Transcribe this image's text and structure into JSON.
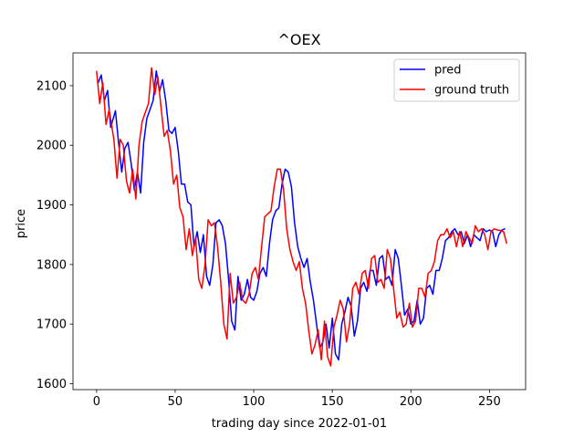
{
  "chart_data": {
    "type": "line",
    "title": "^OEX",
    "xlabel": "trading day since 2022-01-01",
    "ylabel": "price",
    "xlim": [
      -15,
      273
    ],
    "ylim": [
      1590,
      2155
    ],
    "x_ticks": [
      0,
      50,
      100,
      150,
      200,
      250
    ],
    "y_ticks": [
      1600,
      1700,
      1800,
      1900,
      2000,
      2100
    ],
    "grid": false,
    "legend_position": "top-right",
    "series": [
      {
        "name": "pred",
        "color": "#0000ff",
        "x": [
          1,
          3,
          5,
          7,
          9,
          12,
          14,
          16,
          18,
          20,
          22,
          24,
          26,
          28,
          30,
          32,
          34,
          36,
          38,
          40,
          42,
          44,
          46,
          48,
          50,
          52,
          54,
          56,
          58,
          60,
          62,
          64,
          66,
          68,
          70,
          72,
          74,
          76,
          78,
          80,
          82,
          84,
          86,
          88,
          90,
          92,
          94,
          96,
          98,
          100,
          102,
          104,
          106,
          108,
          110,
          112,
          114,
          116,
          118,
          120,
          122,
          124,
          126,
          128,
          130,
          132,
          134,
          136,
          138,
          140,
          142,
          144,
          146,
          148,
          150,
          152,
          154,
          156,
          158,
          160,
          162,
          164,
          166,
          168,
          170,
          172,
          174,
          176,
          178,
          180,
          182,
          184,
          186,
          188,
          190,
          192,
          194,
          196,
          198,
          200,
          202,
          204,
          206,
          208,
          210,
          212,
          214,
          216,
          218,
          220,
          222,
          224,
          226,
          228,
          230,
          232,
          234,
          236,
          238,
          240,
          242,
          244,
          246,
          248,
          250,
          252,
          254,
          256,
          258,
          260
        ],
        "values": [
          2105,
          2118,
          2075,
          2092,
          2030,
          2058,
          2005,
          1955,
          1995,
          2005,
          1970,
          1925,
          1955,
          1920,
          2005,
          2045,
          2060,
          2075,
          2125,
          2090,
          2110,
          2075,
          2025,
          2020,
          2030,
          1990,
          1935,
          1935,
          1905,
          1900,
          1830,
          1855,
          1820,
          1850,
          1780,
          1765,
          1800,
          1870,
          1875,
          1865,
          1835,
          1775,
          1705,
          1690,
          1780,
          1740,
          1750,
          1775,
          1745,
          1740,
          1755,
          1785,
          1795,
          1780,
          1835,
          1875,
          1890,
          1895,
          1935,
          1960,
          1955,
          1930,
          1870,
          1830,
          1810,
          1795,
          1810,
          1770,
          1740,
          1700,
          1660,
          1670,
          1700,
          1660,
          1710,
          1650,
          1640,
          1700,
          1720,
          1745,
          1730,
          1680,
          1705,
          1760,
          1770,
          1755,
          1790,
          1790,
          1765,
          1810,
          1815,
          1775,
          1780,
          1765,
          1825,
          1810,
          1765,
          1715,
          1725,
          1700,
          1705,
          1740,
          1700,
          1710,
          1760,
          1765,
          1750,
          1790,
          1790,
          1810,
          1840,
          1845,
          1855,
          1860,
          1850,
          1855,
          1835,
          1850,
          1830,
          1850,
          1845,
          1840,
          1860,
          1855,
          1858,
          1855,
          1830,
          1850,
          1858,
          1860
        ]
      },
      {
        "name": "ground truth",
        "color": "#ff0000",
        "x": [
          0,
          2,
          4,
          6,
          8,
          11,
          13,
          15,
          17,
          19,
          21,
          23,
          25,
          27,
          29,
          31,
          33,
          35,
          37,
          39,
          41,
          43,
          45,
          47,
          49,
          51,
          53,
          55,
          57,
          59,
          61,
          63,
          65,
          67,
          69,
          71,
          73,
          75,
          77,
          79,
          81,
          83,
          85,
          87,
          89,
          91,
          93,
          95,
          97,
          99,
          101,
          103,
          105,
          107,
          109,
          111,
          113,
          115,
          117,
          119,
          121,
          123,
          125,
          127,
          129,
          131,
          133,
          135,
          137,
          139,
          141,
          143,
          145,
          147,
          149,
          151,
          153,
          155,
          157,
          159,
          161,
          163,
          165,
          167,
          169,
          171,
          173,
          175,
          177,
          179,
          181,
          183,
          185,
          187,
          189,
          191,
          193,
          195,
          197,
          199,
          201,
          203,
          205,
          207,
          209,
          211,
          213,
          215,
          217,
          219,
          221,
          223,
          225,
          227,
          229,
          231,
          233,
          235,
          237,
          239,
          241,
          243,
          245,
          247,
          249,
          251,
          253,
          255,
          257,
          259,
          261
        ],
        "values": [
          2125,
          2070,
          2105,
          2035,
          2060,
          2010,
          1945,
          2010,
          2000,
          1940,
          1920,
          1960,
          1910,
          2000,
          2040,
          2055,
          2070,
          2130,
          2085,
          2115,
          2065,
          2015,
          2025,
          1990,
          1935,
          1950,
          1895,
          1880,
          1825,
          1860,
          1815,
          1845,
          1775,
          1760,
          1800,
          1875,
          1865,
          1870,
          1830,
          1770,
          1700,
          1675,
          1785,
          1735,
          1745,
          1770,
          1740,
          1735,
          1750,
          1785,
          1795,
          1775,
          1830,
          1880,
          1885,
          1890,
          1930,
          1960,
          1960,
          1925,
          1860,
          1825,
          1805,
          1790,
          1805,
          1760,
          1735,
          1690,
          1650,
          1665,
          1690,
          1640,
          1705,
          1645,
          1630,
          1695,
          1715,
          1740,
          1725,
          1670,
          1700,
          1760,
          1770,
          1750,
          1785,
          1790,
          1760,
          1810,
          1815,
          1770,
          1775,
          1760,
          1825,
          1810,
          1760,
          1710,
          1720,
          1695,
          1700,
          1735,
          1695,
          1705,
          1760,
          1760,
          1745,
          1785,
          1790,
          1805,
          1840,
          1850,
          1850,
          1860,
          1845,
          1855,
          1830,
          1855,
          1830,
          1855,
          1845,
          1835,
          1865,
          1855,
          1860,
          1850,
          1825,
          1855,
          1860,
          1858,
          1857,
          1855,
          1835
        ]
      }
    ]
  }
}
